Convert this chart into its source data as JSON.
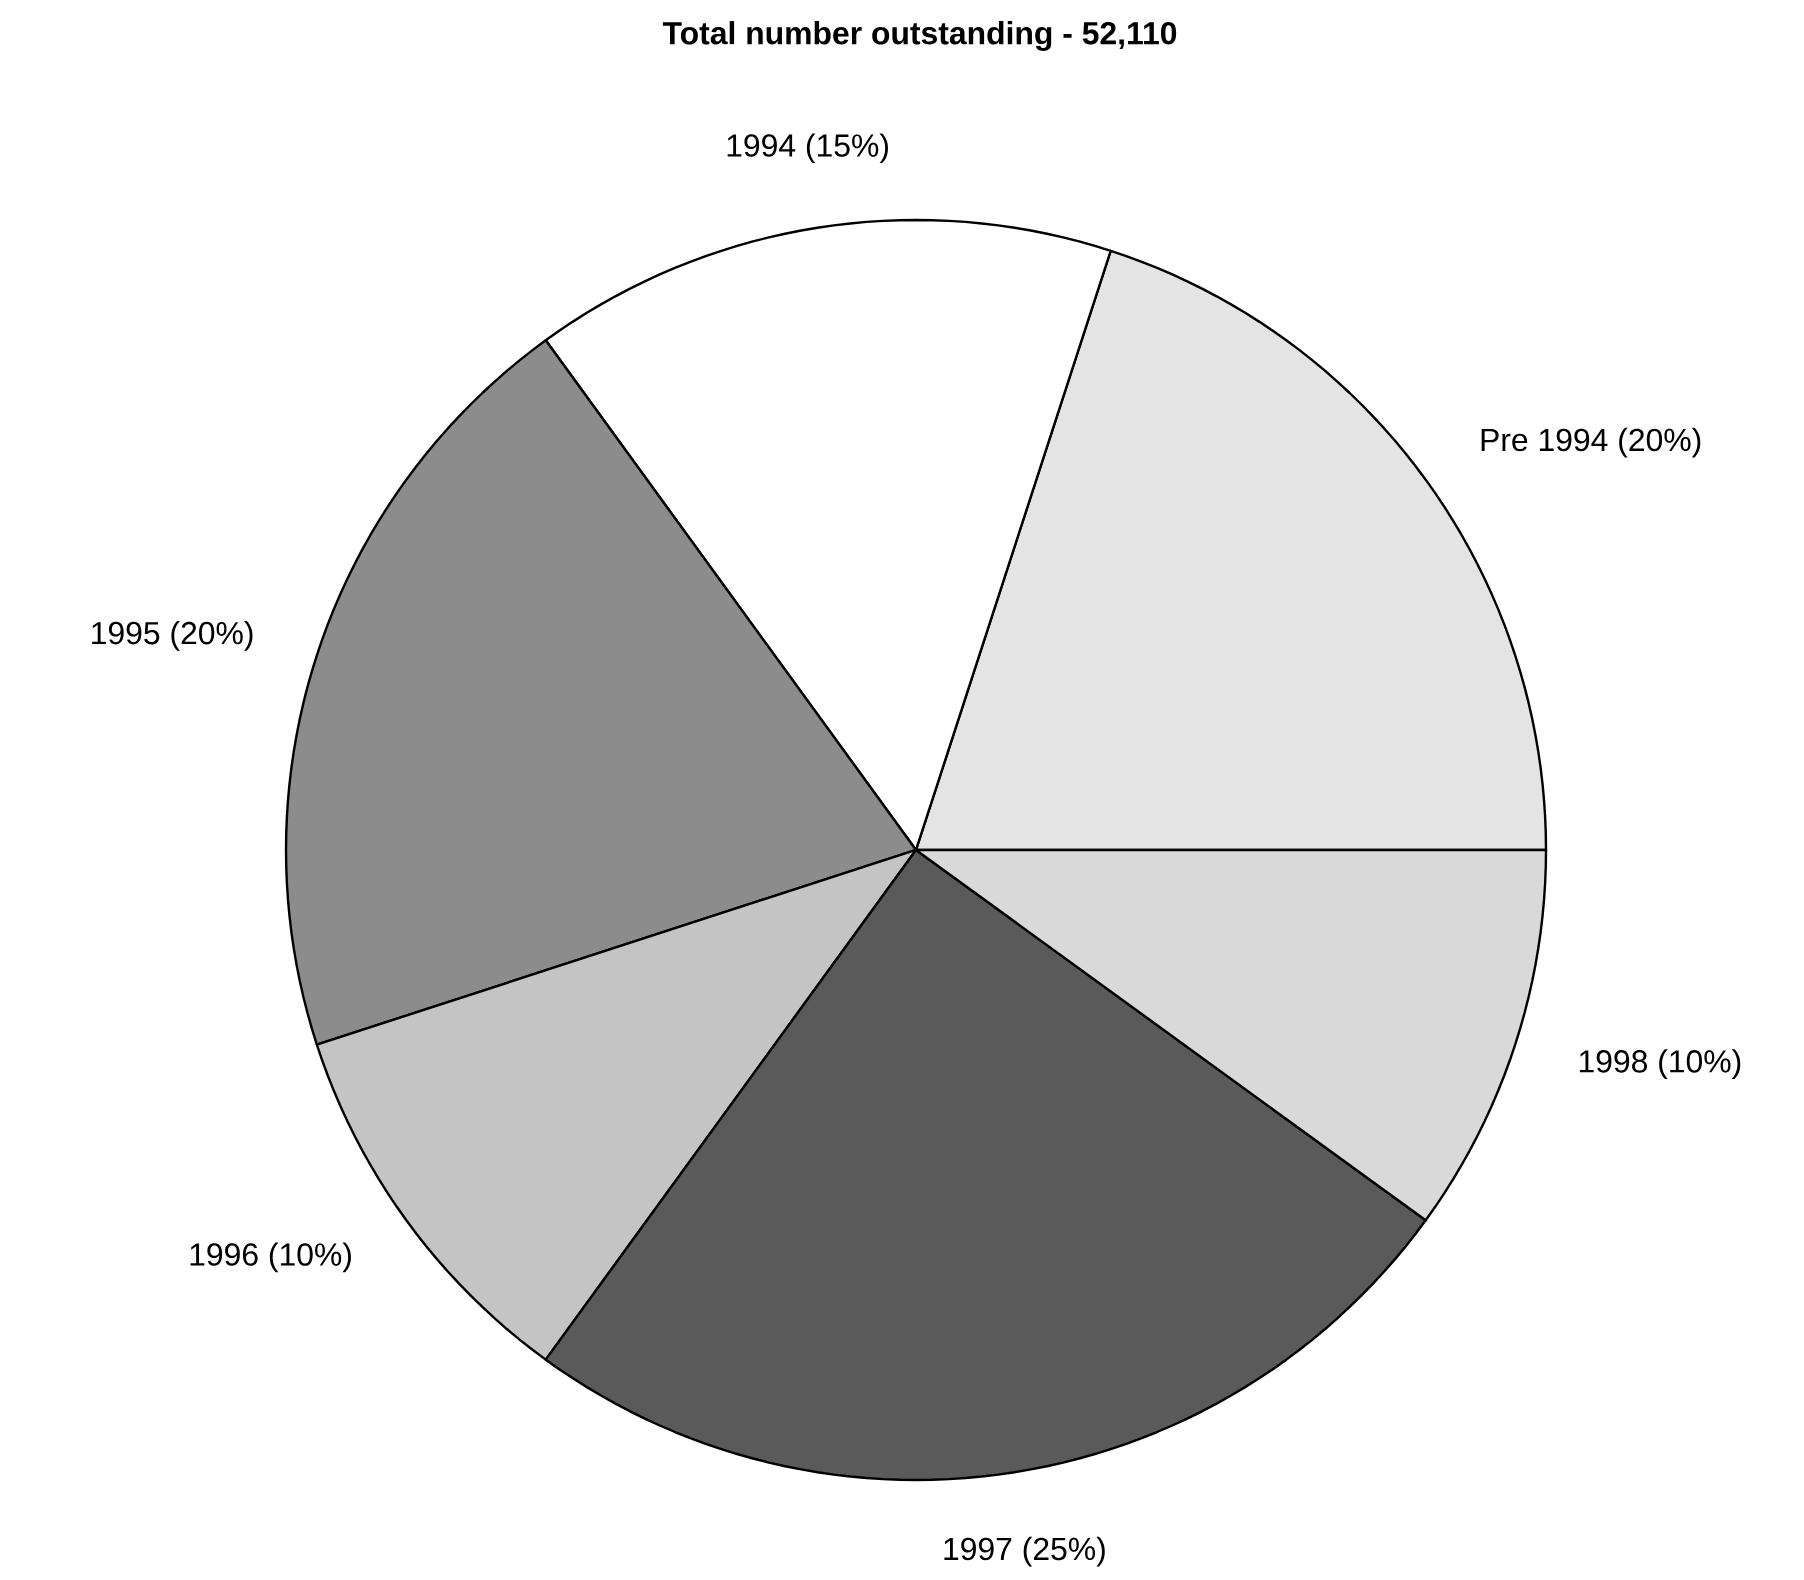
{
  "chart_data": {
    "type": "pie",
    "title": "Total number outstanding - 52,110",
    "categories": [
      "Pre 1994 (20%)",
      "1994 (15%)",
      "1995 (20%)",
      "1996 (10%)",
      "1997 (25%)",
      "1998 (10%)"
    ],
    "values": [
      20,
      15,
      20,
      10,
      25,
      10
    ],
    "colors": [
      "#e4e4e4",
      "#ffffff",
      "#8c8c8c",
      "#c4c4c4",
      "#5a5a5a",
      "#d9d9d9"
    ]
  }
}
